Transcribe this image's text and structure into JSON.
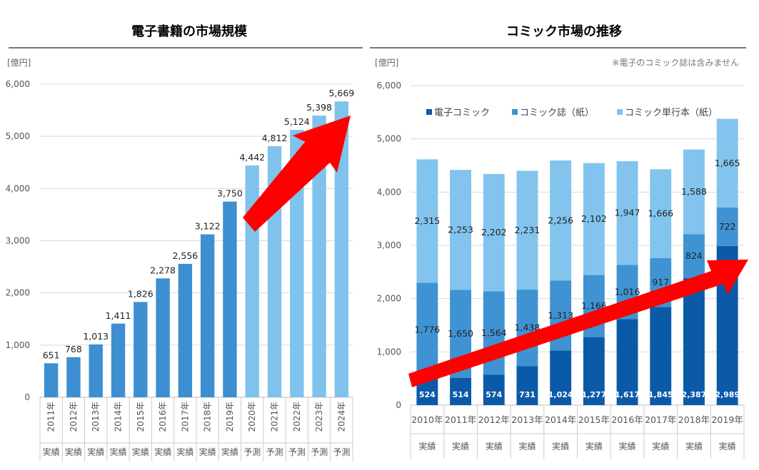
{
  "chart_data": [
    {
      "type": "bar",
      "title": "電子書籍の市場規模",
      "unit_label": "[億円]",
      "ylim": [
        0,
        6000
      ],
      "yticks": [
        "0",
        "1,000",
        "2,000",
        "3,000",
        "4,000",
        "5,000",
        "6,000"
      ],
      "categories": [
        "2011年",
        "2012年",
        "2013年",
        "2014年",
        "2015年",
        "2016年",
        "2017年",
        "2018年",
        "2019年",
        "2020年",
        "2021年",
        "2022年",
        "2023年",
        "2024年"
      ],
      "status": [
        "実績",
        "実績",
        "実績",
        "実績",
        "実績",
        "実績",
        "実績",
        "実績",
        "実績",
        "予測",
        "予測",
        "予測",
        "予測",
        "予測"
      ],
      "values": [
        651,
        768,
        1013,
        1411,
        1826,
        2278,
        2556,
        3122,
        3750,
        4442,
        4812,
        5124,
        5398,
        5669
      ],
      "value_labels": [
        "651",
        "768",
        "1,013",
        "1,411",
        "1,826",
        "2,278",
        "2,556",
        "3,122",
        "3,750",
        "4,442",
        "4,812",
        "5,124",
        "5,398",
        "5,669"
      ],
      "colors": {
        "actual": "#3d8fd1",
        "forecast": "#7fc3ec",
        "arrow": "#ff0000"
      }
    },
    {
      "type": "stacked_bar",
      "title": "コミック市場の推移",
      "unit_label": "[億円]",
      "note": "※電子のコミック誌は含みません",
      "ylim": [
        0,
        6000
      ],
      "yticks": [
        "0",
        "1,000",
        "2,000",
        "3,000",
        "4,000",
        "5,000",
        "6,000"
      ],
      "categories": [
        "2010年",
        "2011年",
        "2012年",
        "2013年",
        "2014年",
        "2015年",
        "2016年",
        "2017年",
        "2018年",
        "2019年"
      ],
      "status": [
        "実績",
        "実績",
        "実績",
        "実績",
        "実績",
        "実績",
        "実績",
        "実績",
        "実績",
        "実績"
      ],
      "series": [
        {
          "name": "電子コミック",
          "color": "#0b5aa8",
          "values": [
            524,
            514,
            574,
            731,
            1024,
            1277,
            1617,
            1845,
            2387,
            2989
          ],
          "labels": [
            "524",
            "514",
            "574",
            "731",
            "1,024",
            "1,277",
            "1,617",
            "1,845",
            "2,387",
            "2,989"
          ]
        },
        {
          "name": "コミック誌（紙）",
          "color": "#3f93d3",
          "values": [
            1776,
            1650,
            1564,
            1438,
            1313,
            1166,
            1016,
            917,
            824,
            722
          ],
          "labels": [
            "1,776",
            "1,650",
            "1,564",
            "1,438",
            "1,313",
            "1,166",
            "1,016",
            "917",
            "824",
            "722"
          ]
        },
        {
          "name": "コミック単行本（紙）",
          "color": "#82c4ed",
          "values": [
            2315,
            2253,
            2202,
            2231,
            2256,
            2102,
            1947,
            1666,
            1588,
            1665
          ],
          "labels": [
            "2,315",
            "2,253",
            "2,202",
            "2,231",
            "2,256",
            "2,102",
            "1,947",
            "1,666",
            "1,588",
            "1,665"
          ]
        }
      ],
      "arrow_color": "#ff0000"
    }
  ]
}
